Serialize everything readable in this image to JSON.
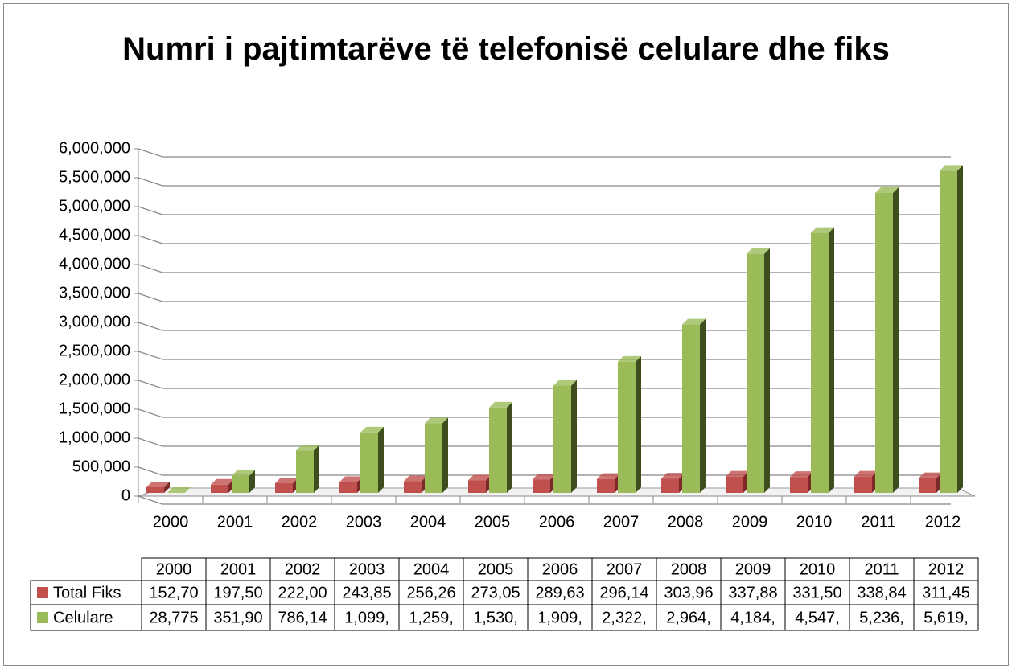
{
  "chart_data": {
    "type": "bar3d",
    "title": "Numri i pajtimtarëve  të telefonisë celulare dhe fiks",
    "categories": [
      "2000",
      "2001",
      "2002",
      "2003",
      "2004",
      "2005",
      "2006",
      "2007",
      "2008",
      "2009",
      "2010",
      "2011",
      "2012"
    ],
    "series": [
      {
        "name": "Total Fiks",
        "color": "#c0504d",
        "values": [
          152700,
          197500,
          222000,
          243850,
          256260,
          273050,
          289630,
          296140,
          303960,
          337880,
          331500,
          338840,
          311450
        ],
        "value_labels": [
          "152,70",
          "197,50",
          "222,00",
          "243,85",
          "256,26",
          "273,05",
          "289,63",
          "296,14",
          "303,96",
          "337,88",
          "331,50",
          "338,84",
          "311,45"
        ]
      },
      {
        "name": "Celulare",
        "color": "#9bbb59",
        "values": [
          28775,
          351900,
          786140,
          1099000,
          1259000,
          1530000,
          1909000,
          2322000,
          2964000,
          4184000,
          4547000,
          5236000,
          5619000
        ],
        "value_labels": [
          "28,775",
          "351,90",
          "786,14",
          "1,099,",
          "1,259,",
          "1,530,",
          "1,909,",
          "2,322,",
          "2,964,",
          "4,184,",
          "4,547,",
          "5,236,",
          "5,619,"
        ]
      }
    ],
    "ylim": [
      0,
      6000000
    ],
    "yticks": [
      0,
      {
        "value": 500000,
        "label": "500,000"
      },
      {
        "value": 1000000,
        "label": "1,000,000"
      },
      {
        "value": 1500000,
        "label": "1,500,000"
      },
      {
        "value": 2000000,
        "label": "2,000,000"
      },
      {
        "value": 2500000,
        "label": "2,500,000"
      },
      {
        "value": 3000000,
        "label": "3,000,000"
      },
      {
        "value": 3500000,
        "label": "3,500,000"
      },
      {
        "value": 4000000,
        "label": "4,000,000"
      },
      {
        "value": 4500000,
        "label": "4,500,000"
      },
      {
        "value": 5000000,
        "label": "5,000,000"
      },
      {
        "value": 5500000,
        "label": "5,500,000"
      },
      {
        "value": 6000000,
        "label": "6,000,000"
      }
    ],
    "grid": true
  }
}
